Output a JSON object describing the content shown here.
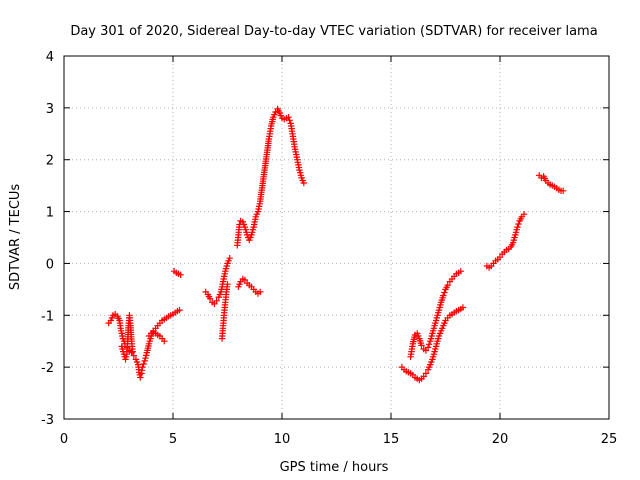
{
  "chart_data": {
    "type": "scatter",
    "title": "Day 301 of 2020, Sidereal Day-to-day VTEC variation (SDTVAR) for receiver lama",
    "xlabel": "GPS time / hours",
    "ylabel": "SDTVAR / TECUs",
    "xlim": [
      0,
      25
    ],
    "ylim": [
      -3,
      4
    ],
    "xticks": [
      0,
      5,
      10,
      15,
      20,
      25
    ],
    "yticks": [
      -3,
      -2,
      -1,
      0,
      1,
      2,
      3,
      4
    ],
    "grid": true,
    "legend": "none",
    "marker": "+",
    "color": "#ff0000",
    "series": [
      {
        "values": [
          [
            2.05,
            -1.15
          ],
          [
            2.15,
            -1.1
          ],
          [
            2.25,
            -1.0
          ],
          [
            2.35,
            -0.98
          ],
          [
            2.45,
            -1.02
          ],
          [
            2.55,
            -1.1
          ],
          [
            2.6,
            -1.25
          ],
          [
            2.65,
            -1.35
          ],
          [
            2.7,
            -1.45
          ],
          [
            2.8,
            -1.55
          ],
          [
            2.9,
            -1.62
          ],
          [
            3.0,
            -1.68
          ],
          [
            3.1,
            -1.72
          ],
          [
            3.2,
            -1.78
          ],
          [
            3.3,
            -1.85
          ],
          [
            3.4,
            -1.95
          ],
          [
            3.45,
            -2.1
          ],
          [
            3.5,
            -2.2
          ],
          [
            3.55,
            -2.12
          ],
          [
            3.6,
            -2.0
          ],
          [
            3.7,
            -1.88
          ],
          [
            3.8,
            -1.72
          ],
          [
            3.9,
            -1.55
          ],
          [
            4.0,
            -1.4
          ],
          [
            4.1,
            -1.3
          ],
          [
            4.2,
            -1.25
          ],
          [
            4.3,
            -1.2
          ],
          [
            4.4,
            -1.15
          ],
          [
            4.5,
            -1.1
          ],
          [
            4.6,
            -1.08
          ],
          [
            4.7,
            -1.05
          ],
          [
            4.8,
            -1.02
          ],
          [
            4.9,
            -1.0
          ],
          [
            5.0,
            -0.98
          ],
          [
            5.1,
            -0.95
          ],
          [
            5.2,
            -0.92
          ],
          [
            5.3,
            -0.9
          ]
        ]
      },
      {
        "values": [
          [
            2.65,
            -1.6
          ],
          [
            2.75,
            -1.75
          ],
          [
            2.82,
            -1.85
          ],
          [
            2.88,
            -1.75
          ],
          [
            2.92,
            -1.5
          ],
          [
            2.96,
            -1.2
          ],
          [
            3.0,
            -1.0
          ],
          [
            3.05,
            -1.2
          ],
          [
            3.1,
            -1.5
          ],
          [
            3.15,
            -1.7
          ]
        ]
      },
      {
        "values": [
          [
            3.9,
            -1.4
          ],
          [
            4.0,
            -1.35
          ],
          [
            4.1,
            -1.32
          ],
          [
            4.2,
            -1.35
          ],
          [
            4.3,
            -1.38
          ],
          [
            4.4,
            -1.4
          ],
          [
            4.5,
            -1.45
          ],
          [
            4.6,
            -1.5
          ]
        ]
      },
      {
        "values": [
          [
            5.05,
            -0.15
          ],
          [
            5.15,
            -0.18
          ],
          [
            5.25,
            -0.2
          ],
          [
            5.35,
            -0.22
          ]
        ]
      },
      {
        "values": [
          [
            6.5,
            -0.55
          ],
          [
            6.6,
            -0.6
          ],
          [
            6.7,
            -0.68
          ],
          [
            6.8,
            -0.75
          ],
          [
            6.9,
            -0.78
          ],
          [
            7.0,
            -0.72
          ],
          [
            7.1,
            -0.65
          ],
          [
            7.2,
            -0.55
          ],
          [
            7.3,
            -0.35
          ],
          [
            7.4,
            -0.15
          ],
          [
            7.5,
            0.0
          ],
          [
            7.6,
            0.1
          ]
        ]
      },
      {
        "values": [
          [
            7.25,
            -1.45
          ],
          [
            7.3,
            -1.2
          ],
          [
            7.35,
            -0.95
          ],
          [
            7.4,
            -0.75
          ],
          [
            7.45,
            -0.55
          ],
          [
            7.5,
            -0.4
          ]
        ]
      },
      {
        "values": [
          [
            8.0,
            -0.45
          ],
          [
            8.1,
            -0.35
          ],
          [
            8.2,
            -0.3
          ],
          [
            8.3,
            -0.32
          ],
          [
            8.4,
            -0.38
          ],
          [
            8.5,
            -0.42
          ],
          [
            8.6,
            -0.45
          ],
          [
            8.7,
            -0.5
          ],
          [
            8.8,
            -0.55
          ],
          [
            8.9,
            -0.58
          ],
          [
            9.0,
            -0.55
          ]
        ]
      },
      {
        "values": [
          [
            7.95,
            0.35
          ],
          [
            8.0,
            0.55
          ],
          [
            8.05,
            0.75
          ],
          [
            8.1,
            0.82
          ],
          [
            8.2,
            0.8
          ],
          [
            8.3,
            0.7
          ],
          [
            8.4,
            0.55
          ],
          [
            8.5,
            0.45
          ],
          [
            8.6,
            0.55
          ],
          [
            8.7,
            0.7
          ],
          [
            8.8,
            0.9
          ],
          [
            8.9,
            1.0
          ],
          [
            9.0,
            1.2
          ],
          [
            9.1,
            1.5
          ],
          [
            9.2,
            1.8
          ],
          [
            9.3,
            2.1
          ],
          [
            9.4,
            2.4
          ],
          [
            9.5,
            2.65
          ],
          [
            9.6,
            2.82
          ],
          [
            9.7,
            2.92
          ],
          [
            9.8,
            2.98
          ],
          [
            9.9,
            2.9
          ],
          [
            10.0,
            2.8
          ],
          [
            10.1,
            2.78
          ],
          [
            10.2,
            2.8
          ],
          [
            10.3,
            2.82
          ],
          [
            10.4,
            2.7
          ],
          [
            10.5,
            2.45
          ],
          [
            10.6,
            2.2
          ],
          [
            10.7,
            2.0
          ],
          [
            10.8,
            1.8
          ],
          [
            10.9,
            1.65
          ],
          [
            11.0,
            1.55
          ]
        ]
      },
      {
        "values": [
          [
            15.5,
            -2.0
          ],
          [
            15.6,
            -2.05
          ],
          [
            15.7,
            -2.08
          ],
          [
            15.8,
            -2.1
          ],
          [
            15.9,
            -2.12
          ],
          [
            16.0,
            -2.15
          ],
          [
            16.1,
            -2.2
          ],
          [
            16.2,
            -2.22
          ],
          [
            16.3,
            -2.25
          ],
          [
            16.4,
            -2.22
          ],
          [
            16.5,
            -2.18
          ],
          [
            16.6,
            -2.12
          ],
          [
            16.7,
            -2.05
          ],
          [
            16.8,
            -1.95
          ],
          [
            16.9,
            -1.85
          ],
          [
            17.0,
            -1.7
          ],
          [
            17.1,
            -1.55
          ],
          [
            17.2,
            -1.4
          ],
          [
            17.3,
            -1.3
          ],
          [
            17.4,
            -1.2
          ],
          [
            17.5,
            -1.1
          ],
          [
            17.6,
            -1.05
          ],
          [
            17.7,
            -1.0
          ],
          [
            17.8,
            -0.98
          ],
          [
            17.9,
            -0.95
          ],
          [
            18.0,
            -0.92
          ],
          [
            18.1,
            -0.9
          ],
          [
            18.2,
            -0.88
          ],
          [
            18.3,
            -0.85
          ]
        ]
      },
      {
        "values": [
          [
            15.9,
            -1.8
          ],
          [
            16.0,
            -1.55
          ],
          [
            16.1,
            -1.38
          ],
          [
            16.2,
            -1.35
          ],
          [
            16.3,
            -1.45
          ],
          [
            16.4,
            -1.58
          ],
          [
            16.5,
            -1.65
          ],
          [
            16.6,
            -1.68
          ],
          [
            16.7,
            -1.62
          ],
          [
            16.8,
            -1.5
          ],
          [
            16.9,
            -1.35
          ],
          [
            17.0,
            -1.2
          ],
          [
            17.1,
            -1.05
          ],
          [
            17.2,
            -0.9
          ],
          [
            17.3,
            -0.75
          ],
          [
            17.4,
            -0.62
          ],
          [
            17.5,
            -0.5
          ],
          [
            17.6,
            -0.42
          ],
          [
            17.7,
            -0.35
          ],
          [
            17.8,
            -0.3
          ],
          [
            17.9,
            -0.25
          ],
          [
            18.0,
            -0.2
          ],
          [
            18.1,
            -0.18
          ],
          [
            18.2,
            -0.15
          ]
        ]
      },
      {
        "values": [
          [
            19.4,
            -0.05
          ],
          [
            19.5,
            -0.08
          ],
          [
            19.6,
            -0.05
          ],
          [
            19.7,
            0.0
          ],
          [
            19.8,
            0.05
          ],
          [
            19.9,
            0.08
          ],
          [
            20.0,
            0.12
          ],
          [
            20.1,
            0.18
          ],
          [
            20.2,
            0.22
          ],
          [
            20.3,
            0.26
          ],
          [
            20.4,
            0.28
          ],
          [
            20.5,
            0.32
          ],
          [
            20.6,
            0.4
          ],
          [
            20.7,
            0.55
          ],
          [
            20.8,
            0.7
          ],
          [
            20.9,
            0.82
          ],
          [
            21.0,
            0.9
          ],
          [
            21.1,
            0.95
          ]
        ]
      },
      {
        "values": [
          [
            21.8,
            1.7
          ],
          [
            21.9,
            1.65
          ],
          [
            22.0,
            1.68
          ],
          [
            22.1,
            1.6
          ],
          [
            22.2,
            1.55
          ],
          [
            22.3,
            1.52
          ],
          [
            22.4,
            1.5
          ],
          [
            22.5,
            1.48
          ],
          [
            22.6,
            1.45
          ],
          [
            22.7,
            1.42
          ],
          [
            22.8,
            1.4
          ],
          [
            22.9,
            1.4
          ]
        ]
      }
    ]
  }
}
